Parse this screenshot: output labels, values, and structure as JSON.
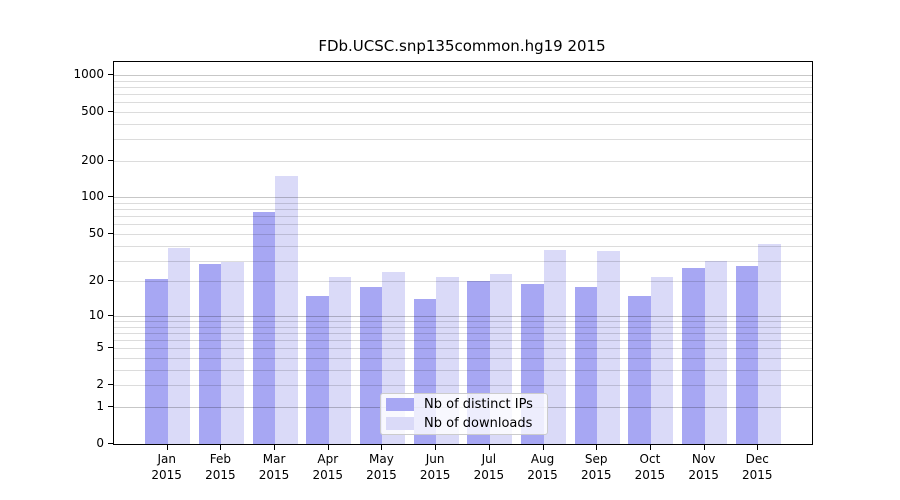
{
  "title": "FDb.UCSC.snp135common.hg19 2015",
  "chart_data": {
    "type": "bar",
    "categories": [
      "Jan",
      "Feb",
      "Mar",
      "Apr",
      "May",
      "Jun",
      "Jul",
      "Aug",
      "Sep",
      "Oct",
      "Nov",
      "Dec"
    ],
    "year": "2015",
    "series": [
      {
        "name": "Nb of distinct IPs",
        "color": "#a7a7f3",
        "values": [
          21,
          28,
          76,
          15,
          18,
          14,
          20,
          19,
          18,
          15,
          26,
          27
        ]
      },
      {
        "name": "Nb of downloads",
        "color": "#dadaf8",
        "values": [
          38,
          29,
          150,
          22,
          24,
          22,
          23,
          37,
          36,
          22,
          30,
          41
        ]
      }
    ],
    "yscale": "log1p",
    "yticks": [
      0,
      1,
      2,
      5,
      10,
      20,
      50,
      100,
      200,
      500,
      1000
    ],
    "ylim": [
      0,
      1275
    ],
    "grid": "horizontal",
    "legend_position": "lower-center"
  }
}
